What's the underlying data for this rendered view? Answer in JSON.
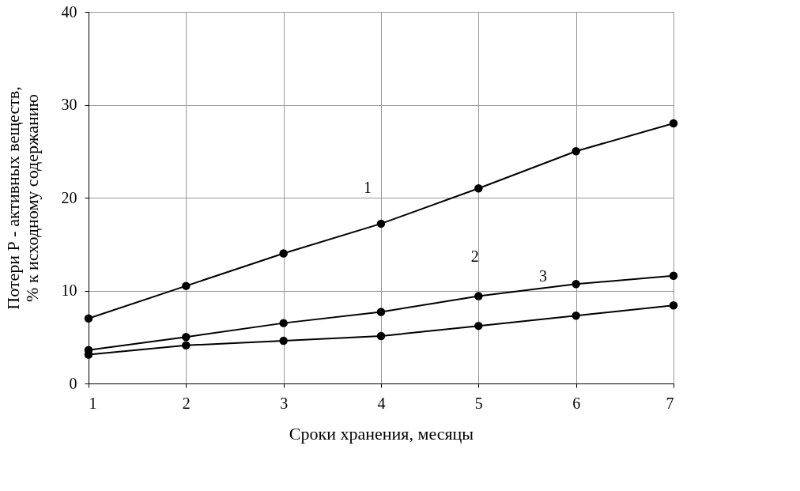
{
  "chart_data": {
    "type": "line",
    "xlabel": "Сроки хранения, месяцы",
    "ylabel": "Потери Р - активных веществ,\n% к исходному содержанию",
    "x": [
      1,
      2,
      3,
      4,
      5,
      6,
      7
    ],
    "series": [
      {
        "color": "#000000",
        "values": [
          7,
          10.5,
          14,
          17.2,
          21,
          25,
          28
        ]
      },
      {
        "color": "#000000",
        "values": [
          3.6,
          5.0,
          6.5,
          7.7,
          9.4,
          10.7,
          11.6
        ]
      },
      {
        "color": "#000000",
        "values": [
          3.1,
          4.1,
          4.6,
          5.1,
          6.2,
          7.3,
          8.4
        ]
      }
    ],
    "annotations": [
      {
        "text": "1",
        "x": 3.7,
        "y": 16.3
      },
      {
        "text": "2",
        "x": 4.8,
        "y": 8.9
      },
      {
        "text": "3",
        "x": 5.5,
        "y": 6.8
      }
    ],
    "xlim": [
      1,
      7
    ],
    "xticks": [
      1,
      2,
      3,
      4,
      5,
      6,
      7
    ],
    "ylim": [
      0,
      40
    ],
    "yticks": [
      0,
      10,
      20,
      30,
      40
    ],
    "grid": true,
    "marker": "circle",
    "line_style": "solid",
    "legend": false
  }
}
